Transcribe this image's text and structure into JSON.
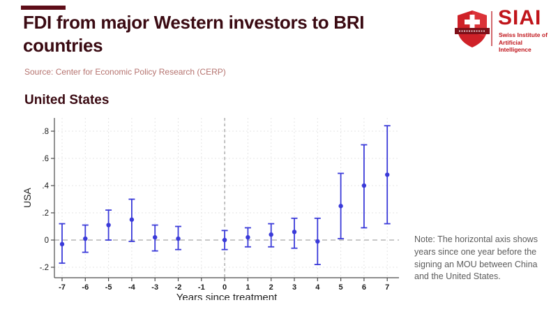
{
  "header": {
    "title": "FDI from major Western investors to BRI countries",
    "source": "Source: Center for Economic Policy Research (CERP)"
  },
  "logo": {
    "name": "SIAI",
    "subtitle_line1": "Swiss Institute of",
    "subtitle_line2": "Artificial Intelligence"
  },
  "section": {
    "heading": "United States"
  },
  "note": {
    "text": "Note: The horizontal axis shows years since one year before the signing an MOU between China and the United States."
  },
  "colors": {
    "title_maroon": "#3a0a12",
    "accent_bar": "#5e0d18",
    "brand_red": "#c0151b",
    "source_rose": "#b5736f",
    "note_gray": "#5c5c5c",
    "point_blue": "#3a3ad9",
    "grid_light": "#e4e4e4",
    "zero_line_gray": "#a8a8a8",
    "axis_dark": "#4a4a4a"
  },
  "chart_data": {
    "type": "scatter",
    "subtype": "coefficient-plot-with-error-bars",
    "title": "United States",
    "xlabel": "Years since treatment",
    "ylabel": "USA",
    "x": [
      -7,
      -6,
      -5,
      -4,
      -3,
      -2,
      -1,
      0,
      1,
      2,
      3,
      4,
      5,
      6,
      7
    ],
    "xticks": [
      "-7",
      "-6",
      "-5",
      "-4",
      "-3",
      "-2",
      "-1",
      "0",
      "1",
      "2",
      "3",
      "4",
      "5",
      "6",
      "7"
    ],
    "yticks": [
      {
        "label": ".8",
        "value": 0.8
      },
      {
        "label": ".6",
        "value": 0.6
      },
      {
        "label": ".4",
        "value": 0.4
      },
      {
        "label": ".2",
        "value": 0.2
      },
      {
        "label": "0",
        "value": 0
      },
      {
        "label": "-.2",
        "value": -0.2
      }
    ],
    "ylim": [
      -0.27,
      0.9
    ],
    "grid": true,
    "reference_line_x": 0,
    "zero_line_y": 0,
    "series": [
      {
        "name": "USA",
        "estimates": [
          -0.03,
          0.01,
          0.11,
          0.15,
          0.02,
          0.01,
          null,
          0.0,
          0.02,
          0.04,
          0.06,
          -0.01,
          0.25,
          0.4,
          0.48
        ],
        "ci_low": [
          -0.17,
          -0.09,
          0.0,
          -0.01,
          -0.08,
          -0.07,
          null,
          -0.07,
          -0.05,
          -0.05,
          -0.06,
          -0.18,
          0.01,
          0.09,
          0.12
        ],
        "ci_high": [
          0.12,
          0.11,
          0.22,
          0.3,
          0.11,
          0.1,
          null,
          0.07,
          0.09,
          0.12,
          0.16,
          0.16,
          0.49,
          0.7,
          0.84
        ]
      }
    ]
  }
}
